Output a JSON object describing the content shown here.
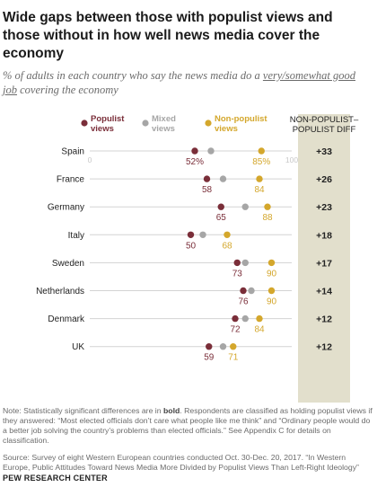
{
  "title": "Wide gaps between those with populist views and those without in how well news media cover the economy",
  "subtitle_prefix": "% of adults in each country who say the news media do a ",
  "subtitle_underlined": "very/somewhat good job",
  "subtitle_suffix": " covering the economy",
  "note_prefix": "Note: Statistically significant differences are in ",
  "note_bold": "bold",
  "note_suffix": ". Respondents are classified as holding populist views if they answered: “Most elected officials don’t care what people like me think” and “Ordinary people would do a better job solving the country’s problems than elected officials.” See Appendix C for details on classification.",
  "source": "Source: Survey of eight Western European countries conducted Oct. 30-Dec. 20, 2017. “In Western Europe, Public Attitudes Toward News Media More Divided by Populist Views Than Left-Right Ideology”",
  "brand": "PEW RESEARCH CENTER",
  "colors": {
    "populist": "#7a2e39",
    "mixed": "#a6a6a6",
    "non_populist": "#d4a72c",
    "diff_column": "#e2dfcc",
    "line": "#d3d3d3"
  },
  "chart_data": {
    "type": "scatter",
    "xlim": [
      0,
      100
    ],
    "axis_tick_labels": [
      "0",
      "100"
    ],
    "diff_header": "NON-POPULIST–\nPOPULIST DIFF",
    "legend": [
      {
        "key": "populist",
        "label": "Populist\nviews"
      },
      {
        "key": "mixed",
        "label": "Mixed\nviews"
      },
      {
        "key": "non_populist",
        "label": "Non-populist\nviews"
      }
    ],
    "categories": [
      "Spain",
      "France",
      "Germany",
      "Italy",
      "Sweden",
      "Netherlands",
      "Denmark",
      "UK"
    ],
    "series": [
      {
        "name": "Populist views",
        "key": "populist",
        "values": [
          52,
          58,
          65,
          50,
          73,
          76,
          72,
          59
        ]
      },
      {
        "name": "Mixed views",
        "key": "mixed",
        "values": [
          60,
          66,
          77,
          56,
          77,
          80,
          77,
          66
        ]
      },
      {
        "name": "Non-populist views",
        "key": "non_populist",
        "values": [
          85,
          84,
          88,
          68,
          90,
          90,
          84,
          71
        ]
      }
    ],
    "value_labels": {
      "populist": [
        "52%",
        "58",
        "65",
        "50",
        "73",
        "76",
        "72",
        "59"
      ],
      "non_populist": [
        "85%",
        "84",
        "88",
        "68",
        "90",
        "90",
        "84",
        "71"
      ]
    },
    "diffs": [
      "+33",
      "+26",
      "+23",
      "+18",
      "+17",
      "+14",
      "+12",
      "+12"
    ]
  }
}
